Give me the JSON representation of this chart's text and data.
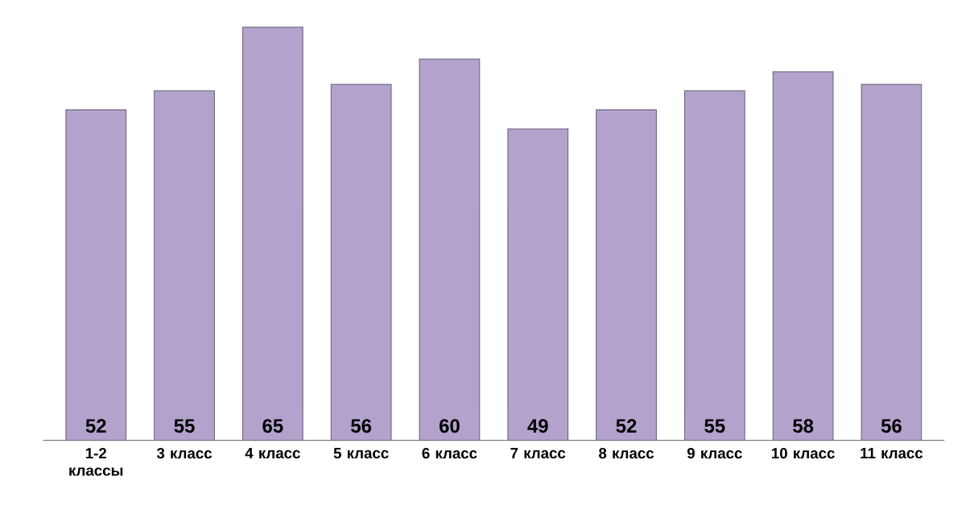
{
  "chart_data": {
    "type": "bar",
    "data_labels": true,
    "color": "#b3a3cc",
    "categories": [
      "1-2 классы",
      "3 класс",
      "4 класс",
      "5 класс",
      "6 класс",
      "7 класс",
      "8 класс",
      "9 класс",
      "10 класс",
      "11 класс"
    ],
    "values": [
      52,
      55,
      65,
      56,
      60,
      49,
      52,
      55,
      58,
      56
    ]
  }
}
